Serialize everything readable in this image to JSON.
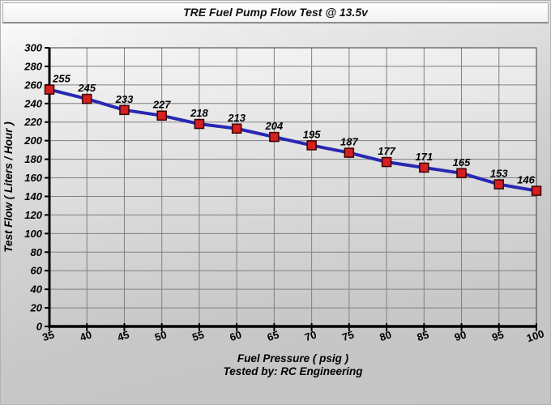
{
  "chart_data": {
    "type": "line",
    "title": "TRE Fuel Pump Flow Test @ 13.5v",
    "x": [
      35,
      40,
      45,
      50,
      55,
      60,
      65,
      70,
      75,
      80,
      85,
      90,
      95,
      100
    ],
    "series": [
      {
        "name": "Test Flow",
        "values": [
          255,
          245,
          233,
          227,
          218,
          213,
          204,
          195,
          187,
          177,
          171,
          165,
          153,
          146
        ]
      }
    ],
    "data_labels": [
      255,
      245,
      233,
      227,
      218,
      213,
      204,
      195,
      187,
      177,
      171,
      165,
      153,
      146
    ],
    "xlabel": "Fuel Pressure ( psig )",
    "ylabel": "Test Flow ( Liters / Hour )",
    "footer": "Tested by: RC Engineering",
    "xlim": [
      35,
      100
    ],
    "ylim": [
      0,
      300
    ],
    "ytick_step": 20,
    "grid": true,
    "legend_position": "none",
    "colors": {
      "line": "#2828b2",
      "marker_fill": "#d42020",
      "marker_border": "#3c0000",
      "grid": "#808080",
      "frame": "#3a3a3a",
      "axis": "#000000",
      "plot_bg_top": "#f5f5f5",
      "plot_bg_bottom": "#c8c8c8"
    }
  }
}
